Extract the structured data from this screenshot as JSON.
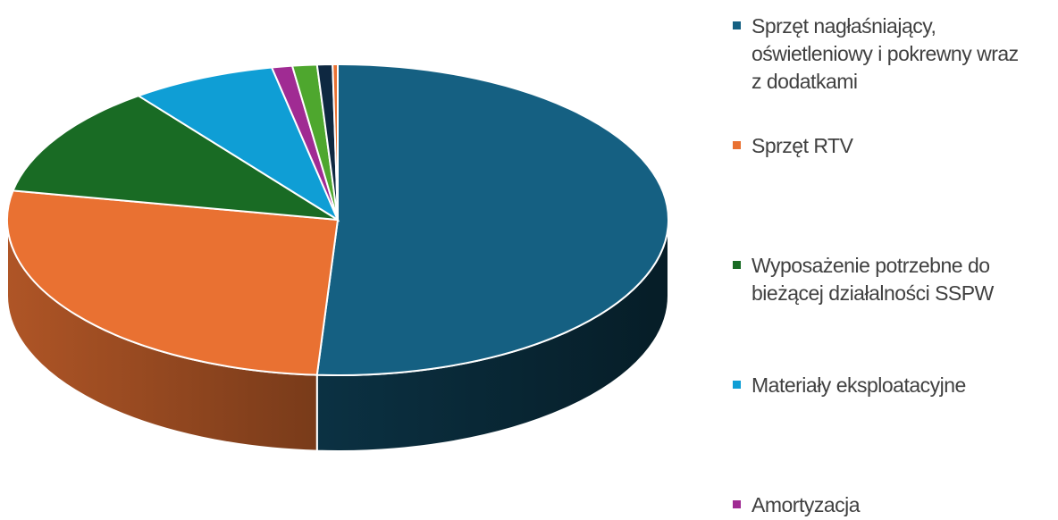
{
  "chart_data": {
    "type": "pie3d",
    "categories": [
      "Sprzęt nagłaśniający, oświetleniowy i pokrewny wraz z dodatkami",
      "Sprzęt RTV",
      "Wyposażenie potrzebne do bieżącej działalności SSPW",
      "Materiały eksploatacyjne",
      "Amortyzacja",
      null,
      null,
      null
    ],
    "values": [
      51,
      27,
      11.7,
      7.1,
      1,
      1.2,
      0.75,
      0.25
    ],
    "colors": [
      "#156082",
      "#e97132",
      "#196b24",
      "#0f9ed5",
      "#a02b93",
      "#4ea72e",
      "#0e2841",
      "#e97132"
    ]
  }
}
